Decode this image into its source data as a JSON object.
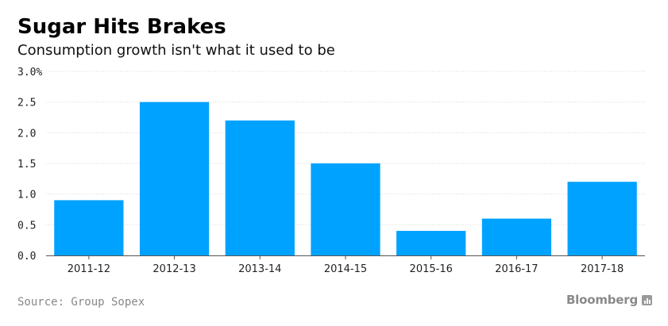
{
  "header": {
    "title": "Sugar Hits Brakes",
    "subtitle": "Consumption growth isn't what it used to be"
  },
  "footer": {
    "source": "Source: Group Sopex",
    "brand": "Bloomberg",
    "brand_icon": "bloomberg-chart-icon"
  },
  "colors": {
    "bar": "#00a2ff",
    "grid": "#d9d9d9",
    "axis": "#555555"
  },
  "chart_data": {
    "type": "bar",
    "title": "Sugar Hits Brakes",
    "subtitle": "Consumption growth isn't what it used to be",
    "xlabel": "",
    "ylabel": "",
    "categories": [
      "2011-12",
      "2012-13",
      "2013-14",
      "2014-15",
      "2015-16",
      "2016-17",
      "2017-18"
    ],
    "values": [
      0.9,
      2.5,
      2.2,
      1.5,
      0.4,
      0.6,
      1.2
    ],
    "ylim": [
      0,
      3.0
    ],
    "yticks": [
      0.0,
      0.5,
      1.0,
      1.5,
      2.0,
      2.5,
      3.0
    ],
    "ytick_labels": [
      "0.0",
      "0.5",
      "1.0",
      "1.5",
      "2.0",
      "2.5",
      "3.0%"
    ],
    "grid": true,
    "legend": "none"
  }
}
